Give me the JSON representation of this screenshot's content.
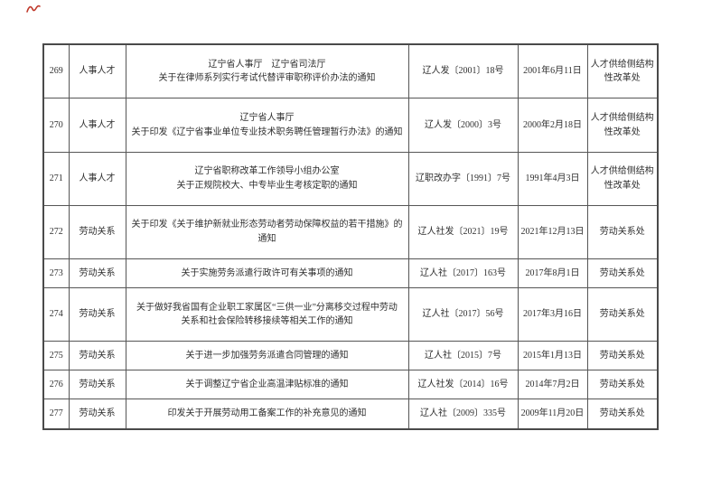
{
  "colors": {
    "table_border": "#4a4a4a",
    "cell_border": "#565656",
    "text": "#2f2f2f",
    "annotation_mark": "#c0392b"
  },
  "icons": {
    "annotation_mark": "red-squiggle-mark"
  },
  "table": {
    "rows": [
      {
        "no": "269",
        "category": "人事人才",
        "title": "辽宁省人事厅　辽宁省司法厅\n关于在律师系列实行考试代替评审职称评价办法的通知",
        "doc_no": "辽人发〔2001〕18号",
        "date": "2001年6月11日",
        "department": "人才供给侧结构\n性改革处"
      },
      {
        "no": "270",
        "category": "人事人才",
        "title": "辽宁省人事厅\n关于印发《辽宁省事业单位专业技术职务聘任管理暂行办法》的通知",
        "doc_no": "辽人发〔2000〕3号",
        "date": "2000年2月18日",
        "department": "人才供给侧结构\n性改革处"
      },
      {
        "no": "271",
        "category": "人事人才",
        "title": "辽宁省职称改革工作领导小组办公室\n关于正规院校大、中专毕业生考核定职的通知",
        "doc_no": "辽职改办字〔1991〕7号",
        "date": "1991年4月3日",
        "department": "人才供给侧结构\n性改革处"
      },
      {
        "no": "272",
        "category": "劳动关系",
        "title": "关于印发《关于维护新就业形态劳动者劳动保障权益的若干措施》的\n通知",
        "doc_no": "辽人社发〔2021〕19号",
        "date": "2021年12月13日",
        "department": "劳动关系处"
      },
      {
        "no": "273",
        "category": "劳动关系",
        "title": "关于实施劳务派遣行政许可有关事项的通知",
        "doc_no": "辽人社〔2017〕163号",
        "date": "2017年8月1日",
        "department": "劳动关系处"
      },
      {
        "no": "274",
        "category": "劳动关系",
        "title": "关于做好我省国有企业职工家属区“三供一业”分离移交过程中劳动\n关系和社会保险转移接续等相关工作的通知",
        "doc_no": "辽人社〔2017〕56号",
        "date": "2017年3月16日",
        "department": "劳动关系处"
      },
      {
        "no": "275",
        "category": "劳动关系",
        "title": "关于进一步加强劳务派遣合同管理的通知",
        "doc_no": "辽人社〔2015〕7号",
        "date": "2015年1月13日",
        "department": "劳动关系处"
      },
      {
        "no": "276",
        "category": "劳动关系",
        "title": "关于调整辽宁省企业高温津贴标准的通知",
        "doc_no": "辽人社发〔2014〕16号",
        "date": "2014年7月2日",
        "department": "劳动关系处"
      },
      {
        "no": "277",
        "category": "劳动关系",
        "title": "印发关于开展劳动用工备案工作的补充意见的通知",
        "doc_no": "辽人社〔2009〕335号",
        "date": "2009年11月20日",
        "department": "劳动关系处"
      }
    ]
  }
}
